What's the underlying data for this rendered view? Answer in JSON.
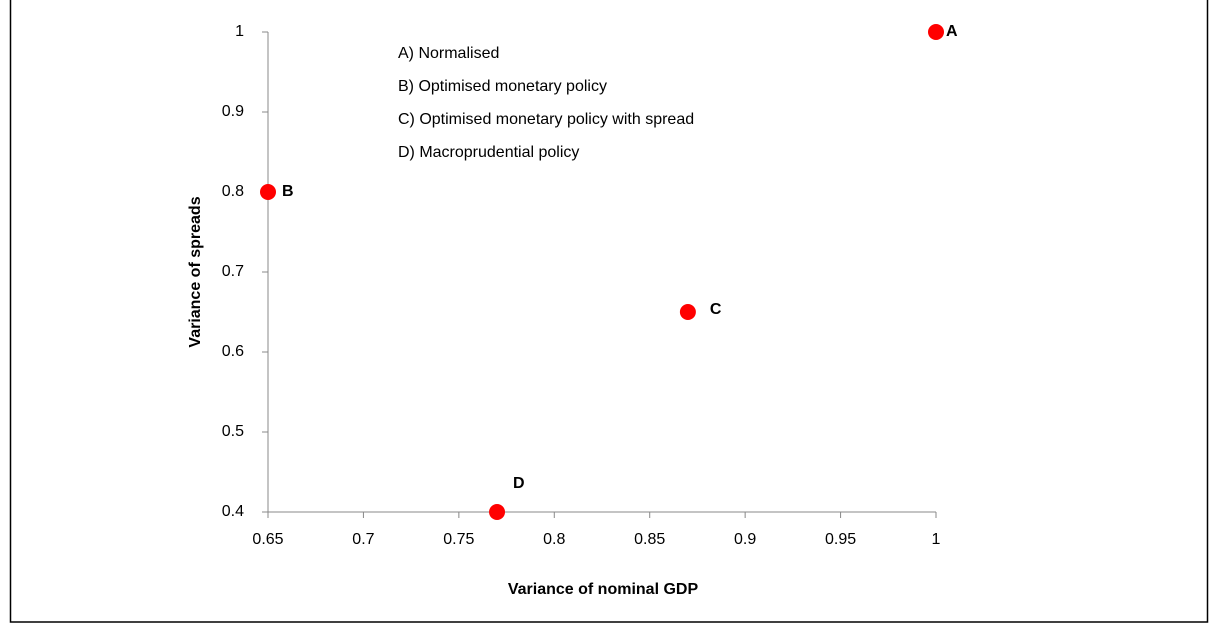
{
  "chart_data": {
    "type": "scatter",
    "x_label": "Variance of nominal GDP",
    "y_label": "Variance of spreads",
    "series": [
      {
        "color": "#ff0000",
        "x": [
          1,
          0.65,
          0.87,
          0.77
        ],
        "values": [
          1,
          0.8,
          0.65,
          0.4
        ],
        "point_labels": [
          "A",
          "B",
          "C",
          "D"
        ]
      }
    ],
    "annotations": [
      "A) Normalised",
      "B) Optimised monetary policy",
      "C) Optimised monetary policy with spread",
      "D) Macroprudential policy"
    ],
    "xlim": [
      0.65,
      1
    ],
    "xticks": [
      0.65,
      0.7,
      0.75,
      0.8,
      0.85,
      0.9,
      0.95,
      1
    ],
    "ylim": [
      0.4,
      1
    ],
    "yticks": [
      0.4,
      0.5,
      0.6,
      0.7,
      0.8,
      0.9,
      1
    ]
  }
}
